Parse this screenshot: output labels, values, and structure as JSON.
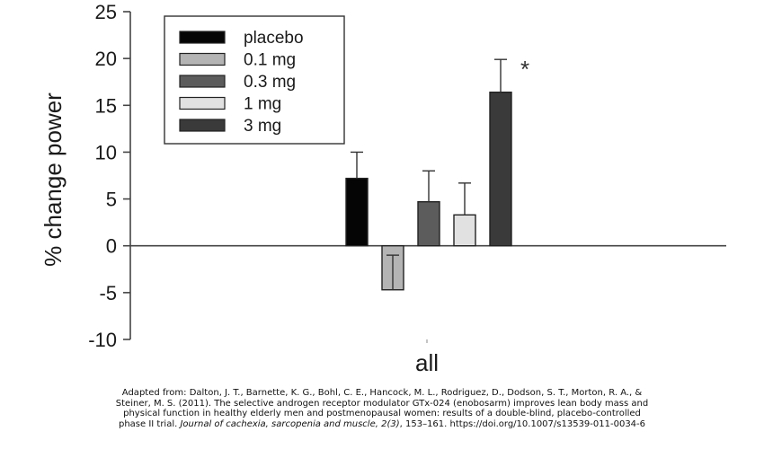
{
  "chart_data": {
    "type": "bar",
    "title": "",
    "xlabel": "all",
    "ylabel": "% change power",
    "ylim": [
      -10,
      25
    ],
    "yticks": [
      25,
      20,
      15,
      10,
      5,
      0,
      -5,
      -10
    ],
    "ytick_labels": [
      "25",
      "20",
      "15",
      "10",
      "5",
      "0",
      "-5",
      "-10"
    ],
    "categories": [
      "all"
    ],
    "legend_position": "top-left",
    "series": [
      {
        "name": "placebo",
        "value": 7.2,
        "error": 2.8,
        "color": "#050505"
      },
      {
        "name": "0.1 mg",
        "value": -4.7,
        "error": 3.7,
        "color": "#b4b4b4"
      },
      {
        "name": "0.3 mg",
        "value": 4.7,
        "error": 3.3,
        "color": "#5c5c5c"
      },
      {
        "name": "1 mg",
        "value": 3.3,
        "error": 3.4,
        "color": "#e1e1e1"
      },
      {
        "name": "3 mg",
        "value": 16.4,
        "error": 3.5,
        "color": "#3a3a3a"
      }
    ],
    "annotations": [
      {
        "text": "*",
        "series": "3 mg"
      }
    ]
  },
  "caption": {
    "line1": "Adapted from: Dalton, J. T., Barnette, K. G., Bohl, C. E., Hancock, M. L., Rodriguez, D., Dodson, S. T., Morton, R. A., &",
    "line2": "Steiner, M. S. (2011). The selective androgen receptor modulator GTx-024 (enobosarm) improves lean body mass and",
    "line3": "physical function in healthy elderly men and postmenopausal women: results of a double-blind, placebo-controlled",
    "line4_prefix": "phase II trial.",
    "line4_journal": "Journal of cachexia, sarcopenia and muscle, 2(3)",
    "line4_suffix": ", 153–161. https://doi.org/10.1007/s13539-011-0034-6"
  }
}
